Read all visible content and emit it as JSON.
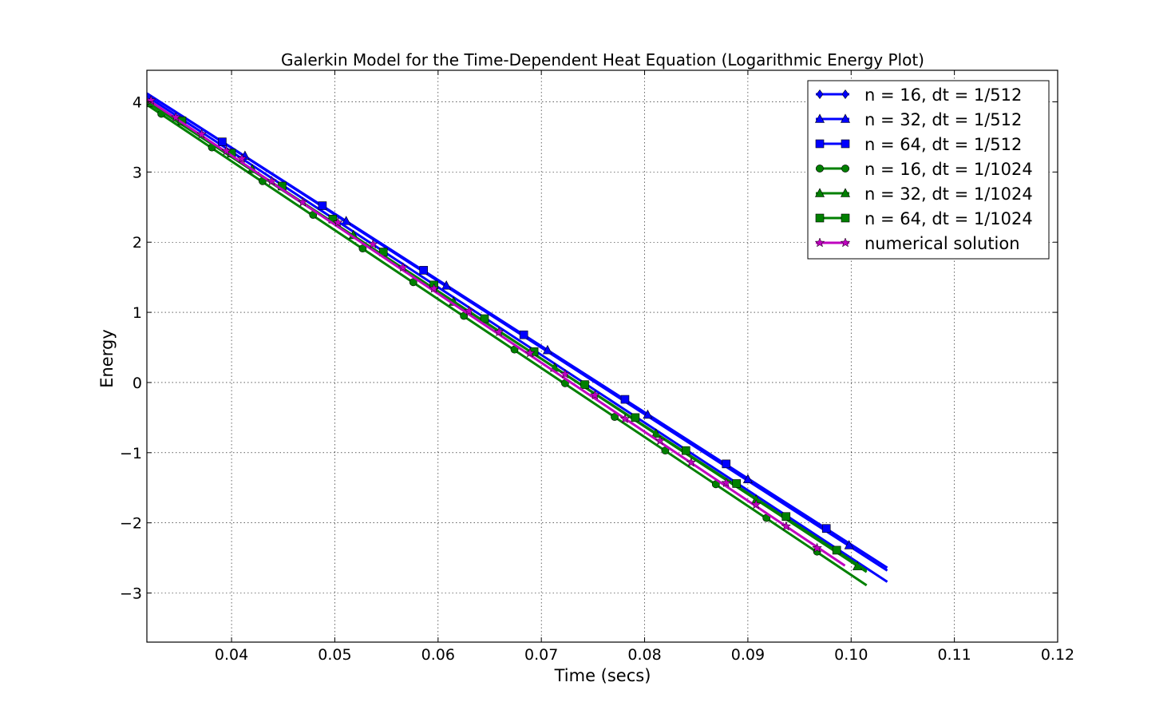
{
  "chart_data": {
    "type": "line",
    "title": "Galerkin Model for the Time-Dependent Heat Equation (Logarithmic Energy Plot)",
    "xlabel": "Time (secs)",
    "ylabel": "Energy",
    "xlim": [
      0.0318,
      0.12
    ],
    "ylim": [
      -3.7,
      4.45
    ],
    "xticks": [
      0.04,
      0.05,
      0.06,
      0.07,
      0.08,
      0.09,
      0.1,
      0.11,
      0.12
    ],
    "xtick_labels": [
      "0.04",
      "0.05",
      "0.06",
      "0.07",
      "0.08",
      "0.09",
      "0.10",
      "0.11",
      "0.12"
    ],
    "yticks": [
      -3,
      -2,
      -1,
      0,
      1,
      2,
      3,
      4
    ],
    "ytick_labels": [
      "−3",
      "−2",
      "−1",
      "0",
      "1",
      "2",
      "3",
      "4"
    ],
    "grid": true,
    "legend_position": "top-right",
    "series": [
      {
        "name": "n = 16, dt = 1/512",
        "color": "#0000ff",
        "marker": "diamond",
        "x": [
          0.0318,
          0.1035
        ],
        "y": [
          4.12,
          -2.64
        ],
        "markers": []
      },
      {
        "name": "n = 32, dt = 1/512",
        "color": "#0000ff",
        "marker": "triangle",
        "x": [
          0.0318,
          0.1035
        ],
        "y": [
          4.12,
          -2.68
        ],
        "markers": [
          [
            0.0413,
            3.23
          ],
          [
            0.0511,
            2.3
          ],
          [
            0.0608,
            1.38
          ],
          [
            0.0706,
            0.46
          ],
          [
            0.0803,
            -0.46
          ],
          [
            0.09,
            -1.38
          ],
          [
            0.0998,
            -2.32
          ]
        ]
      },
      {
        "name": "n = 64, dt = 1/512",
        "color": "#0000ff",
        "marker": "square",
        "x": [
          0.0318,
          0.1035
        ],
        "y": [
          4.08,
          -2.84
        ],
        "markers": [
          [
            0.0391,
            3.43
          ],
          [
            0.0488,
            2.52
          ],
          [
            0.0586,
            1.6
          ],
          [
            0.0683,
            0.68
          ],
          [
            0.0781,
            -0.24
          ],
          [
            0.0879,
            -1.16
          ],
          [
            0.0976,
            -2.08
          ]
        ]
      },
      {
        "name": "n = 16, dt = 1/1024",
        "color": "#008000",
        "marker": "circle",
        "x": [
          0.0318,
          0.1015
        ],
        "y": [
          3.96,
          -2.89
        ],
        "markers": [
          [
            0.0332,
            3.83
          ],
          [
            0.0381,
            3.35
          ],
          [
            0.043,
            2.87
          ],
          [
            0.0479,
            2.39
          ],
          [
            0.0527,
            1.91
          ],
          [
            0.0576,
            1.43
          ],
          [
            0.0625,
            0.95
          ],
          [
            0.0674,
            0.47
          ],
          [
            0.0723,
            -0.01
          ],
          [
            0.0771,
            -0.49
          ],
          [
            0.082,
            -0.97
          ],
          [
            0.0869,
            -1.45
          ],
          [
            0.0918,
            -1.93
          ],
          [
            0.0967,
            -2.41
          ]
        ]
      },
      {
        "name": "n = 32, dt = 1/1024",
        "color": "#008000",
        "marker": "triangle",
        "x": [
          0.0318,
          0.1015
        ],
        "y": [
          4.02,
          -2.7
        ],
        "markers": [
          [
            0.0322,
            3.98
          ],
          [
            0.042,
            3.04
          ],
          [
            0.0518,
            2.1
          ],
          [
            0.0615,
            1.15
          ],
          [
            0.0713,
            0.21
          ],
          [
            0.0811,
            -0.73
          ],
          [
            0.0908,
            -1.67
          ],
          [
            0.1006,
            -2.62
          ]
        ]
      },
      {
        "name": "n = 64, dt = 1/1024",
        "color": "#008000",
        "marker": "square",
        "x": [
          0.0318,
          0.1015
        ],
        "y": [
          4.0,
          -2.68
        ],
        "markers": [
          [
            0.0352,
            3.73
          ],
          [
            0.04,
            3.27
          ],
          [
            0.0449,
            2.8
          ],
          [
            0.0498,
            2.33
          ],
          [
            0.0547,
            1.86
          ],
          [
            0.0596,
            1.39
          ],
          [
            0.0645,
            0.91
          ],
          [
            0.0693,
            0.44
          ],
          [
            0.0742,
            -0.03
          ],
          [
            0.0791,
            -0.5
          ],
          [
            0.084,
            -0.97
          ],
          [
            0.0889,
            -1.44
          ],
          [
            0.0937,
            -1.91
          ],
          [
            0.0986,
            -2.39
          ]
        ]
      },
      {
        "name": "numerical solution",
        "color": "#bf00bf",
        "marker": "star",
        "x": [
          0.0318,
          0.0994
        ],
        "y": [
          4.04,
          -2.61
        ],
        "markers": [
          [
            0.0322,
            4.02
          ],
          [
            0.0346,
            3.78
          ],
          [
            0.0371,
            3.54
          ],
          [
            0.0395,
            3.3
          ],
          [
            0.041,
            3.19
          ],
          [
            0.0439,
            2.87
          ],
          [
            0.0469,
            2.57
          ],
          [
            0.0503,
            2.28
          ],
          [
            0.0537,
            1.97
          ],
          [
            0.0566,
            1.64
          ],
          [
            0.0596,
            1.34
          ],
          [
            0.063,
            1.02
          ],
          [
            0.0659,
            0.72
          ],
          [
            0.0689,
            0.42
          ],
          [
            0.0723,
            0.12
          ],
          [
            0.0752,
            -0.18
          ],
          [
            0.0781,
            -0.52
          ],
          [
            0.0815,
            -0.83
          ],
          [
            0.0845,
            -1.14
          ],
          [
            0.0879,
            -1.43
          ],
          [
            0.0908,
            -1.74
          ],
          [
            0.0937,
            -2.05
          ],
          [
            0.0967,
            -2.36
          ]
        ]
      }
    ]
  }
}
